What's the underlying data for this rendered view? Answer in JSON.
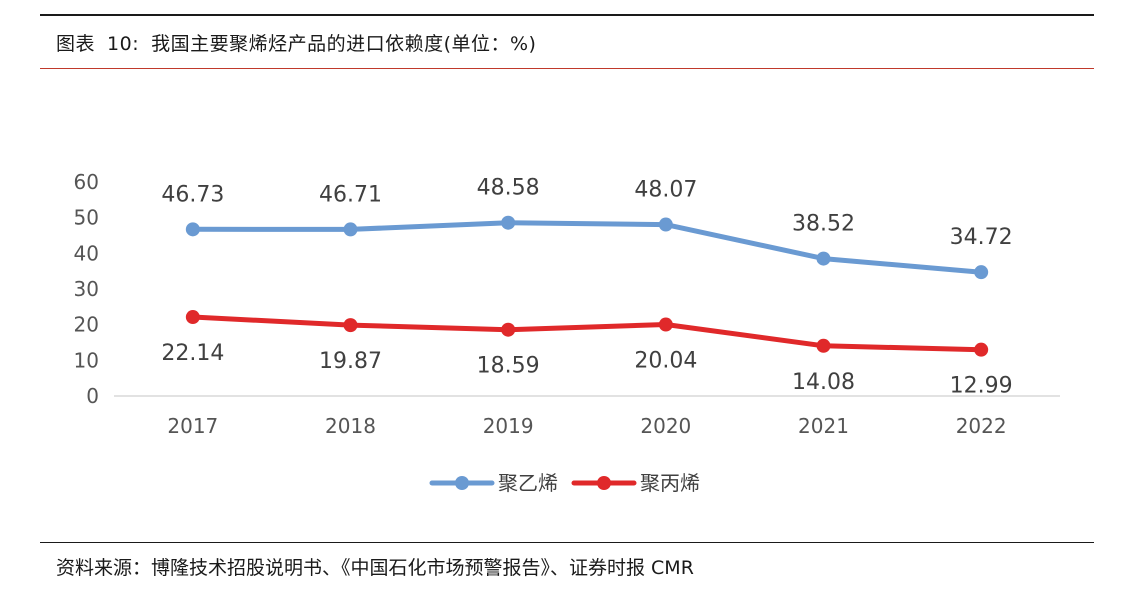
{
  "figure": {
    "label": "图表",
    "number": "10:",
    "title": "我国主要聚烯烃产品的进口依赖度(单位：%)"
  },
  "source": "资料来源：博隆技术招股说明书、《中国石化市场预警报告》、证券时报 CMR",
  "chart_data": {
    "type": "line",
    "title": "我国主要聚烯烃产品的进口依赖度(单位：%)",
    "categories": [
      "2017",
      "2018",
      "2019",
      "2020",
      "2021",
      "2022"
    ],
    "y_ticks": [
      "0",
      "10",
      "20",
      "30",
      "40",
      "50",
      "60"
    ],
    "ylim": [
      0,
      60
    ],
    "grid": false,
    "legend_position": "bottom",
    "series": [
      {
        "name": "聚乙烯",
        "color": "#6a9ad2",
        "label_position": "above",
        "values": [
          46.73,
          46.71,
          48.58,
          48.07,
          38.52,
          34.72
        ],
        "labels": [
          "46.73",
          "46.71",
          "48.58",
          "48.07",
          "38.52",
          "34.72"
        ]
      },
      {
        "name": "聚丙烯",
        "color": "#e0292a",
        "label_position": "below",
        "values": [
          22.14,
          19.87,
          18.59,
          20.04,
          14.08,
          12.99
        ],
        "labels": [
          "22.14",
          "19.87",
          "18.59",
          "20.04",
          "14.08",
          "12.99"
        ]
      }
    ]
  }
}
